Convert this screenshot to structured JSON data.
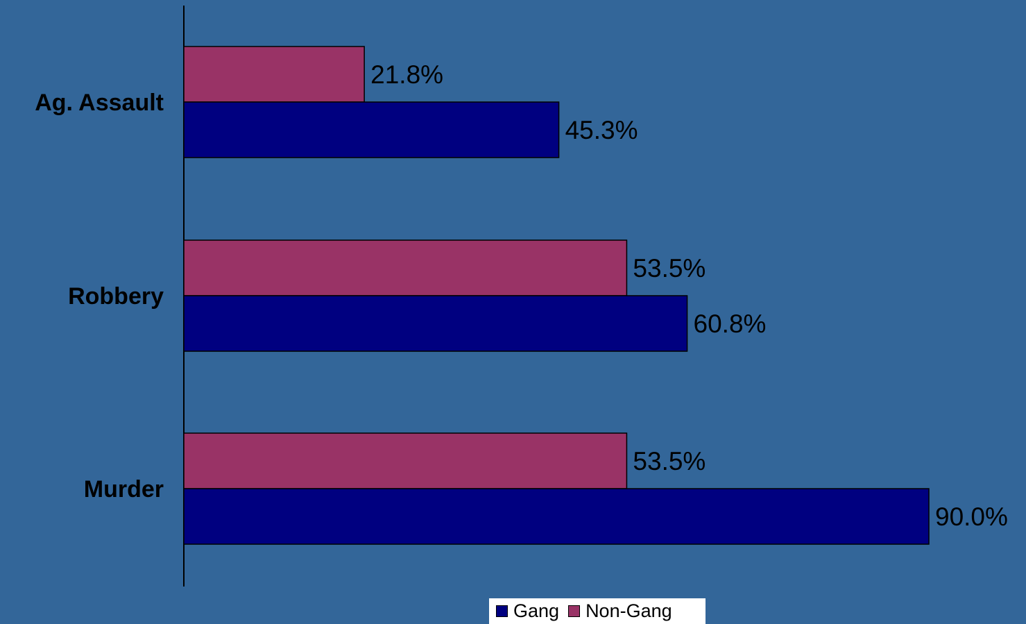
{
  "chart_data": {
    "type": "bar",
    "orientation": "horizontal",
    "categories": [
      "Ag. Assault",
      "Robbery",
      "Murder"
    ],
    "series": [
      {
        "name": "Non-Gang",
        "values": [
          21.8,
          53.5,
          53.5
        ],
        "labels": [
          "21.8%",
          "53.5%",
          "53.5%"
        ],
        "color": "#993366"
      },
      {
        "name": "Gang",
        "values": [
          45.3,
          60.8,
          90.0
        ],
        "labels": [
          "45.3%",
          "60.8%",
          "90.0%"
        ],
        "color": "#000080"
      }
    ],
    "title": "",
    "xlabel": "",
    "ylabel": "",
    "xlim": [
      0,
      100
    ],
    "grid": false,
    "legend": {
      "placement": "bottom",
      "entries": [
        {
          "name": "Gang",
          "color": "#000080"
        },
        {
          "name": "Non-Gang",
          "color": "#993366"
        }
      ]
    },
    "background": "#336699"
  }
}
